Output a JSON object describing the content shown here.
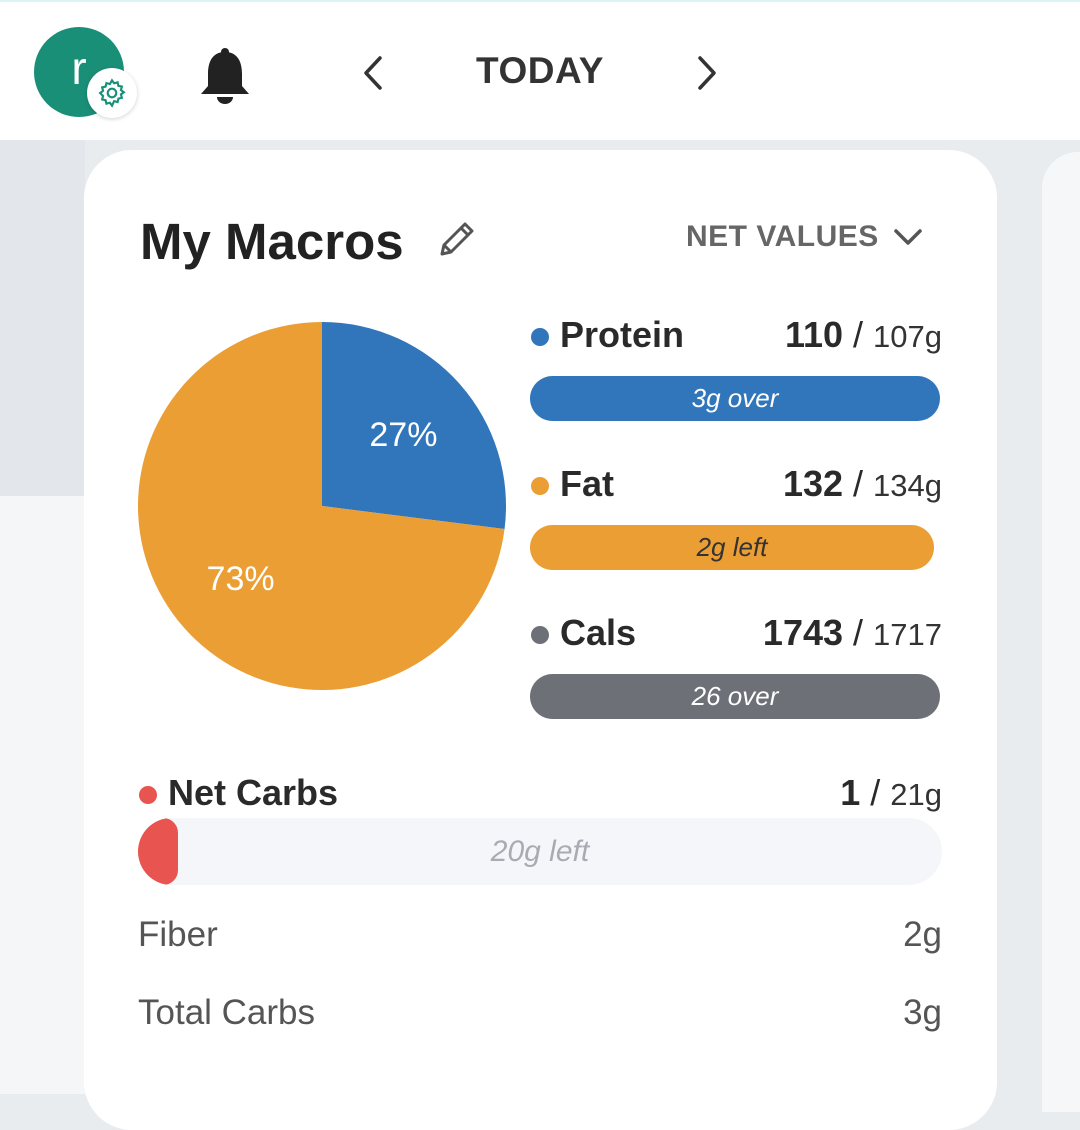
{
  "header": {
    "avatar_letter": "r",
    "date_label": "TODAY"
  },
  "icons": {
    "settings": "gear-icon",
    "notifications": "bell-icon",
    "prev": "chevron-left-icon",
    "next": "chevron-right-icon",
    "edit": "pencil-icon",
    "dropdown": "chevron-down-icon"
  },
  "card": {
    "title": "My Macros",
    "view_select": "NET VALUES"
  },
  "chart_data": {
    "type": "pie",
    "slices": [
      {
        "label": "Protein",
        "value": 27,
        "display": "27%",
        "color": "#3176bb"
      },
      {
        "label": "Fat",
        "value": 73,
        "display": "73%",
        "color": "#eb9e33"
      }
    ]
  },
  "macros": [
    {
      "name": "Protein",
      "current": "110",
      "goal": "107g",
      "status": "3g over",
      "color": "#3176bb",
      "progress": 1.0
    },
    {
      "name": "Fat",
      "current": "132",
      "goal": "134g",
      "status": "2g left",
      "color": "#eb9e33",
      "progress": 0.985
    },
    {
      "name": "Cals",
      "current": "1743",
      "goal": "1717",
      "status": "26 over",
      "color": "#6e7078",
      "progress": 1.0
    }
  ],
  "net_carbs": {
    "name": "Net Carbs",
    "current": "1",
    "goal": "21g",
    "status": "20g left",
    "color": "#e85450",
    "progress": 0.048
  },
  "details": [
    {
      "label": "Fiber",
      "value": "2g"
    },
    {
      "label": "Total Carbs",
      "value": "3g"
    }
  ]
}
